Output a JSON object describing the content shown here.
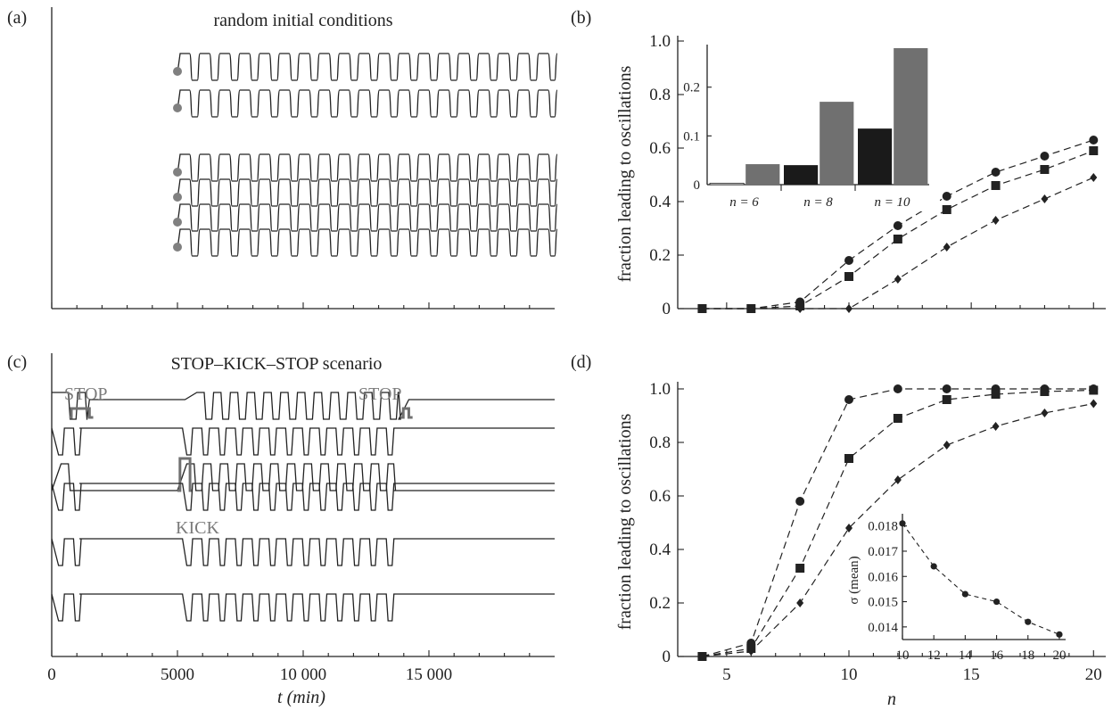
{
  "chart_data": [
    {
      "panel": "a",
      "panel_label": "(a)",
      "type": "line",
      "title": "random initial conditions",
      "xlim": [
        0,
        20000
      ],
      "traces": [
        {
          "start": 5000,
          "end": 20000,
          "oscillating": true
        },
        {
          "start": 5000,
          "end": 20000,
          "oscillating": true
        },
        {
          "start": 5000,
          "end": 20000,
          "oscillating": true
        },
        {
          "start": 5000,
          "end": 20000,
          "oscillating": true
        },
        {
          "start": 5000,
          "end": 20000,
          "oscillating": true
        },
        {
          "start": 5000,
          "end": 20000,
          "oscillating": true
        }
      ],
      "marker_color": "#808080",
      "cycles_visible": 22
    },
    {
      "panel": "b",
      "panel_label": "(b)",
      "type": "line",
      "ylabel": "fraction leading to oscillations",
      "xlim": [
        3,
        20.5
      ],
      "ylim": [
        0,
        1.0
      ],
      "yticks": [
        0,
        0.2,
        0.4,
        0.6,
        0.8,
        1.0
      ],
      "ytick_labels": [
        "0",
        "0.2",
        "0.4",
        "0.6",
        "0.8",
        "1.0"
      ],
      "series": [
        {
          "marker": "circle",
          "x": [
            4,
            6,
            8,
            10,
            12,
            14,
            16,
            18,
            20
          ],
          "y": [
            0,
            0,
            0.025,
            0.18,
            0.31,
            0.42,
            0.51,
            0.57,
            0.63
          ]
        },
        {
          "marker": "square",
          "x": [
            4,
            6,
            8,
            10,
            12,
            14,
            16,
            18,
            20
          ],
          "y": [
            0,
            0,
            0.01,
            0.12,
            0.26,
            0.37,
            0.46,
            0.52,
            0.59
          ]
        },
        {
          "marker": "diamond",
          "x": [
            4,
            6,
            8,
            10,
            12,
            14,
            16,
            18,
            20
          ],
          "y": [
            0,
            0,
            0,
            0,
            0.11,
            0.23,
            0.33,
            0.41,
            0.49
          ]
        }
      ],
      "inset": {
        "type": "bar",
        "ylim": [
          0,
          0.28
        ],
        "yticks": [
          0,
          0.1,
          0.2
        ],
        "ytick_labels": [
          "0",
          "0.1",
          "0.2"
        ],
        "groups": [
          "n = 6",
          "n = 8",
          "n = 10"
        ],
        "bars": [
          {
            "group": 0,
            "value": 0.003,
            "color": "#ffffff"
          },
          {
            "group": 0,
            "value": 0.042,
            "color": "#707070"
          },
          {
            "group": 1,
            "value": 0.04,
            "color": "#1a1a1a"
          },
          {
            "group": 1,
            "value": 0.17,
            "color": "#707070"
          },
          {
            "group": 2,
            "value": 0.115,
            "color": "#1a1a1a"
          },
          {
            "group": 2,
            "value": 0.28,
            "color": "#707070"
          }
        ]
      }
    },
    {
      "panel": "c",
      "panel_label": "(c)",
      "type": "line",
      "title": "STOP–KICK–STOP scenario",
      "xlabel": "t (min)",
      "xlim": [
        0,
        20000
      ],
      "xticks": [
        0,
        5000,
        10000,
        15000
      ],
      "xtick_labels": [
        "0",
        "5000",
        "10 000",
        "15 000"
      ],
      "annotations": [
        {
          "text": "STOP",
          "t": 950
        },
        {
          "text": "STOP",
          "t": 13600
        },
        {
          "text": "KICK",
          "t": 5300
        }
      ],
      "pulse_color": "#707070"
    },
    {
      "panel": "d",
      "panel_label": "(d)",
      "type": "line",
      "ylabel": "fraction leading to oscillations",
      "xlabel": "n",
      "xlim": [
        3,
        20.5
      ],
      "ylim": [
        0,
        1.0
      ],
      "xticks": [
        5,
        10,
        15,
        20
      ],
      "xtick_labels": [
        "5",
        "10",
        "15",
        "20"
      ],
      "yticks": [
        0,
        0.2,
        0.4,
        0.6,
        0.8,
        1.0
      ],
      "ytick_labels": [
        "0",
        "0.2",
        "0.4",
        "0.6",
        "0.8",
        "1.0"
      ],
      "series": [
        {
          "marker": "circle",
          "x": [
            4,
            6,
            8,
            10,
            12,
            14,
            16,
            18,
            20
          ],
          "y": [
            0,
            0.05,
            0.58,
            0.96,
            1.0,
            1.0,
            1.0,
            1.0,
            1.0
          ]
        },
        {
          "marker": "square",
          "x": [
            4,
            6,
            8,
            10,
            12,
            14,
            16,
            18,
            20
          ],
          "y": [
            0,
            0.03,
            0.33,
            0.74,
            0.89,
            0.96,
            0.98,
            0.99,
            0.995
          ]
        },
        {
          "marker": "diamond",
          "x": [
            4,
            6,
            8,
            10,
            12,
            14,
            16,
            18,
            20
          ],
          "y": [
            0,
            0.02,
            0.2,
            0.48,
            0.66,
            0.79,
            0.86,
            0.91,
            0.945
          ]
        }
      ],
      "inset": {
        "type": "line",
        "ylabel": "σ (mean)",
        "xlim": [
          10,
          20.4
        ],
        "ylim": [
          0.0135,
          0.0182
        ],
        "xticks": [
          10,
          12,
          14,
          16,
          18,
          20
        ],
        "xtick_labels": [
          "10",
          "12",
          "14",
          "16",
          "18",
          "20"
        ],
        "yticks": [
          0.014,
          0.015,
          0.016,
          0.017,
          0.018
        ],
        "ytick_labels": [
          "0.014",
          "0.015",
          "0.016",
          "0.017",
          "0.018"
        ],
        "x": [
          10,
          12,
          14,
          16,
          18,
          20
        ],
        "y": [
          0.0181,
          0.0164,
          0.0153,
          0.015,
          0.0142,
          0.0137
        ]
      }
    }
  ]
}
